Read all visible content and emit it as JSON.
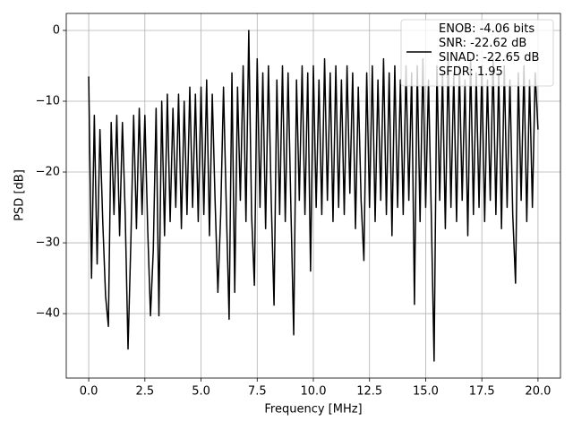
{
  "chart_data": {
    "type": "line",
    "xlabel": "Frequency [MHz]",
    "ylabel": "PSD [dB]",
    "x": [
      0,
      0.125,
      0.25,
      0.375,
      0.5,
      0.625,
      0.75,
      0.875,
      1,
      1.125,
      1.25,
      1.375,
      1.5,
      1.625,
      1.75,
      1.875,
      2,
      2.125,
      2.25,
      2.375,
      2.5,
      2.625,
      2.75,
      2.875,
      3,
      3.125,
      3.25,
      3.375,
      3.5,
      3.625,
      3.75,
      3.875,
      4,
      4.125,
      4.25,
      4.375,
      4.5,
      4.625,
      4.75,
      4.875,
      5,
      5.125,
      5.25,
      5.375,
      5.5,
      5.625,
      5.75,
      5.875,
      6,
      6.125,
      6.25,
      6.375,
      6.5,
      6.625,
      6.75,
      6.875,
      7,
      7.125,
      7.25,
      7.375,
      7.5,
      7.625,
      7.75,
      7.875,
      8,
      8.125,
      8.25,
      8.375,
      8.5,
      8.625,
      8.75,
      8.875,
      9,
      9.125,
      9.25,
      9.375,
      9.5,
      9.625,
      9.75,
      9.875,
      10,
      10.125,
      10.25,
      10.375,
      10.5,
      10.625,
      10.75,
      10.875,
      11,
      11.125,
      11.25,
      11.375,
      11.5,
      11.625,
      11.75,
      11.875,
      12,
      12.125,
      12.25,
      12.375,
      12.5,
      12.625,
      12.75,
      12.875,
      13,
      13.125,
      13.25,
      13.375,
      13.5,
      13.625,
      13.75,
      13.875,
      14,
      14.125,
      14.25,
      14.375,
      14.5,
      14.625,
      14.75,
      14.875,
      15,
      15.125,
      15.25,
      15.375,
      15.5,
      15.625,
      15.75,
      15.875,
      16,
      16.125,
      16.25,
      16.375,
      16.5,
      16.625,
      16.75,
      16.875,
      17,
      17.125,
      17.25,
      17.375,
      17.5,
      17.625,
      17.75,
      17.875,
      18,
      18.125,
      18.25,
      18.375,
      18.5,
      18.625,
      18.75,
      18.875,
      19,
      19.125,
      19.25,
      19.375,
      19.5,
      19.625,
      19.75,
      19.875,
      20
    ],
    "series": [
      {
        "name": "ENOB: -4.06 bits\nSNR: -22.62 dB\nSINAD: -22.65 dB\nSFDR: 1.95",
        "color": "#000000",
        "values": [
          -6.5,
          -35,
          -12,
          -33,
          -14,
          -27,
          -37.5,
          -41.8,
          -13,
          -26,
          -12,
          -29,
          -13,
          -26,
          -45,
          -30,
          -12,
          -28,
          -11,
          -26,
          -12,
          -28,
          -40.3,
          -31,
          -11,
          -40.3,
          -10,
          -29,
          -9,
          -27,
          -11,
          -25,
          -9,
          -28,
          -10,
          -26,
          -8,
          -25,
          -9,
          -27,
          -8,
          -26,
          -7,
          -29,
          -9,
          -24,
          -37,
          -26,
          -8,
          -25,
          -40.8,
          -6,
          -37,
          -8,
          -24,
          -5,
          -27,
          0,
          -26,
          -36,
          -4,
          -25,
          -6,
          -28,
          -5,
          -24,
          -38.8,
          -7,
          -26,
          -5,
          -27,
          -6,
          -25,
          -43,
          -7,
          -24,
          -5,
          -26,
          -6,
          -34,
          -5,
          -25,
          -7,
          -26,
          -4,
          -24,
          -6,
          -27,
          -5,
          -25,
          -7,
          -26,
          -5,
          -23,
          -6,
          -28,
          -8,
          -24,
          -32.5,
          -6,
          -25,
          -5,
          -27,
          -7,
          -24,
          -4,
          -26,
          -6,
          -29,
          -5,
          -25,
          -7,
          -26,
          -5,
          -24,
          -6,
          -38.7,
          -5,
          -27,
          -4,
          -25,
          -7,
          -26,
          -46.7,
          -5,
          -24,
          -6,
          -28,
          -4,
          -25,
          -6,
          -27,
          -5,
          -24,
          -7,
          -29,
          -4,
          -26,
          -6,
          -25,
          -5,
          -27,
          -7,
          -24,
          -4,
          -26,
          -6,
          -28,
          -5,
          -25,
          -7,
          -26,
          -35.7,
          -6,
          -24,
          -5,
          -27,
          -7,
          -25,
          -6,
          -14
        ]
      }
    ],
    "xlim": [
      -1.0,
      21.0
    ],
    "xticks": [
      {
        "value": 0,
        "label": "0.0"
      },
      2.5,
      {
        "value": 5,
        "label": "5.0"
      },
      7.5,
      {
        "value": 10,
        "label": "10.0"
      },
      12.5,
      {
        "value": 15,
        "label": "15.0"
      },
      17.5,
      {
        "value": 20,
        "label": "20.0"
      }
    ],
    "ylim": [
      -49.1,
      2.4
    ],
    "yticks": [
      {
        "value": -40,
        "label": "−40"
      },
      {
        "value": -30,
        "label": "−30"
      },
      {
        "value": -20,
        "label": "−20"
      },
      {
        "value": -10,
        "label": "−10"
      },
      0
    ],
    "grid": true,
    "legend": "upper right"
  }
}
